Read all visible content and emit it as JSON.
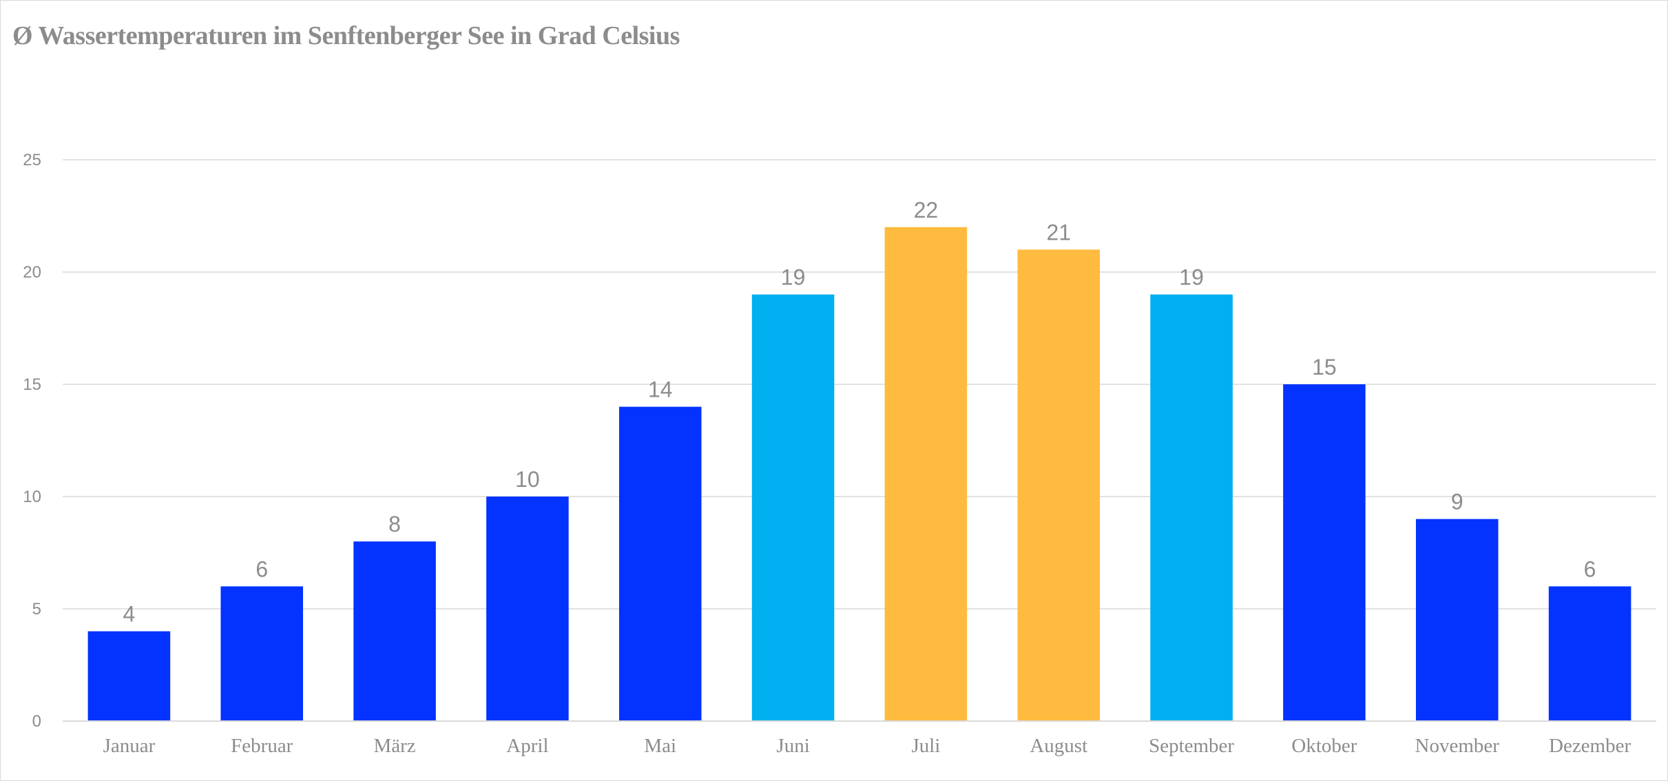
{
  "chart_data": {
    "type": "bar",
    "title": "Ø Wassertemperaturen im Senftenberger See in Grad Celsius",
    "xlabel": "",
    "ylabel": "",
    "categories": [
      "Januar",
      "Februar",
      "März",
      "April",
      "Mai",
      "Juni",
      "Juli",
      "August",
      "September",
      "Oktober",
      "November",
      "Dezember"
    ],
    "values": [
      4,
      6,
      8,
      10,
      14,
      19,
      22,
      21,
      19,
      15,
      9,
      6
    ],
    "bar_colors": [
      "#0433ff",
      "#0433ff",
      "#0433ff",
      "#0433ff",
      "#0433ff",
      "#00b0f0",
      "#ffbb40",
      "#ffbb40",
      "#00b0f0",
      "#0433ff",
      "#0433ff",
      "#0433ff"
    ],
    "ylim": [
      0,
      25
    ],
    "yticks": [
      0,
      5,
      10,
      15,
      20,
      25
    ],
    "grid": true,
    "data_labels": true,
    "legend": "none"
  }
}
